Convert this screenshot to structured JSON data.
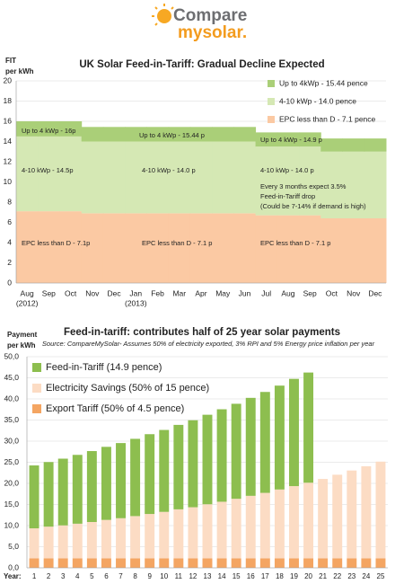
{
  "header": {
    "brand_top": "Compare",
    "brand_bottom": "mysolar."
  },
  "chart_data": [
    {
      "type": "area",
      "stacked": true,
      "step": true,
      "grid": true,
      "legend": "upper right",
      "title": "UK Solar Feed-in-Tariff: Gradual Decline Expected",
      "y_label": [
        "FIT",
        "per kWh"
      ],
      "categories": [
        "Aug",
        "Sep",
        "Oct",
        "Nov",
        "Dec",
        "Jan",
        "Feb",
        "Mar",
        "Apr",
        "May",
        "Jun",
        "Jul",
        "Aug",
        "Sep",
        "Oct",
        "Nov",
        "Dec"
      ],
      "category_sublabels": [
        "(2012)",
        null,
        null,
        null,
        null,
        "(2013)",
        null,
        null,
        null,
        null,
        null,
        null,
        null,
        null,
        null,
        null,
        null
      ],
      "ylim": [
        0,
        20
      ],
      "yticks": [
        0,
        2,
        4,
        6,
        8,
        10,
        12,
        14,
        16,
        18,
        20
      ],
      "series": [
        {
          "name": "EPC less than D - 7.1 pence",
          "color": "#fbc9a3",
          "values": [
            7.1,
            7.1,
            7.1,
            6.9,
            6.9,
            6.9,
            6.9,
            6.9,
            6.9,
            6.9,
            6.9,
            6.7,
            6.7,
            6.7,
            6.4,
            6.4,
            6.4
          ]
        },
        {
          "name": "4-10 kWp - 14.0 pence",
          "color": "#d5e8b4",
          "values": [
            7.4,
            7.4,
            7.4,
            7.1,
            7.1,
            7.1,
            7.1,
            7.1,
            7.1,
            7.1,
            7.1,
            6.8,
            6.8,
            6.8,
            6.6,
            6.6,
            6.6
          ]
        },
        {
          "name": "Up to 4kWp - 15.44 pence",
          "color": "#aacf78",
          "values": [
            1.5,
            1.5,
            1.5,
            1.44,
            1.44,
            1.44,
            1.44,
            1.44,
            1.44,
            1.44,
            1.44,
            1.4,
            1.4,
            1.4,
            1.3,
            1.3,
            1.3
          ]
        }
      ],
      "annotations": [
        "Up to 4 kWp - 16p",
        "4-10 kWp - 14.5p",
        "EPC less than D - 7.1p",
        "Up to 4 kWp - 15.44 p",
        "4-10 kWp - 14.0 p",
        "EPC less than D - 7.1 p",
        "Up to 4 kWp - 14.9 p",
        "4-10 kWp - 14.0 p",
        "Every 3 months  expect 3.5%",
        "Feed-in-Tariff drop",
        "(Could be 7-14% if demand is high)",
        "EPC less than D - 7.1 p"
      ]
    },
    {
      "type": "bar",
      "stacked": true,
      "grid": true,
      "legend": "upper left",
      "title": "Feed-in-tariff: contributes half of 25 year solar payments",
      "subtitle": "Source: CompareMySolar- Assumes 50% of electricity exported, 3% RPI and 5% Energy price inflation per year",
      "y_label": [
        "Payment",
        "per kWh"
      ],
      "x_label": "Year:",
      "categories": [
        "1",
        "2",
        "3",
        "4",
        "5",
        "6",
        "7",
        "8",
        "9",
        "10",
        "11",
        "12",
        "13",
        "14",
        "15",
        "16",
        "17",
        "18",
        "19",
        "20",
        "21",
        "22",
        "23",
        "24",
        "25"
      ],
      "ylim": [
        0,
        50
      ],
      "yticks": [
        {
          "value": 0,
          "label": "0,0"
        },
        {
          "value": 5,
          "label": "5,0"
        },
        {
          "value": 10,
          "label": "10,0"
        },
        {
          "value": 15,
          "label": "15,0"
        },
        {
          "value": 20,
          "label": "20,0"
        },
        {
          "value": 25,
          "label": "25,0"
        },
        {
          "value": 30,
          "label": "30,0"
        },
        {
          "value": 35,
          "label": "35,0"
        },
        {
          "value": 40,
          "label": "40,0"
        },
        {
          "value": 45,
          "label": "45,0"
        },
        {
          "value": 50,
          "label": "50,0"
        }
      ],
      "series": [
        {
          "name": "Export Tariff (50% of 4.5 pence)",
          "color": "#f4a562",
          "values": [
            2.25,
            2.25,
            2.25,
            2.25,
            2.25,
            2.25,
            2.25,
            2.25,
            2.25,
            2.25,
            2.25,
            2.25,
            2.25,
            2.25,
            2.25,
            2.25,
            2.25,
            2.25,
            2.25,
            2.25,
            2.25,
            2.25,
            2.25,
            2.25,
            2.25
          ]
        },
        {
          "name": "Electricity Savings (50% of 15 pence)",
          "color": "#fcdcc4",
          "values": [
            7.1,
            7.5,
            7.8,
            8.2,
            8.6,
            9.1,
            9.5,
            10.0,
            10.5,
            11.0,
            11.6,
            12.1,
            12.8,
            13.4,
            14.1,
            14.8,
            15.5,
            16.3,
            17.1,
            17.9,
            18.8,
            19.8,
            20.8,
            21.8,
            22.9
          ]
        },
        {
          "name": "Feed-in-Tariff (14.9 pence)",
          "color": "#8dbe4f",
          "values": [
            14.9,
            15.3,
            15.8,
            16.3,
            16.8,
            17.3,
            17.8,
            18.3,
            18.9,
            19.4,
            20.0,
            20.6,
            21.2,
            21.9,
            22.5,
            23.2,
            23.9,
            24.6,
            25.4,
            26.1,
            null,
            null,
            null,
            null,
            null
          ]
        }
      ]
    }
  ]
}
